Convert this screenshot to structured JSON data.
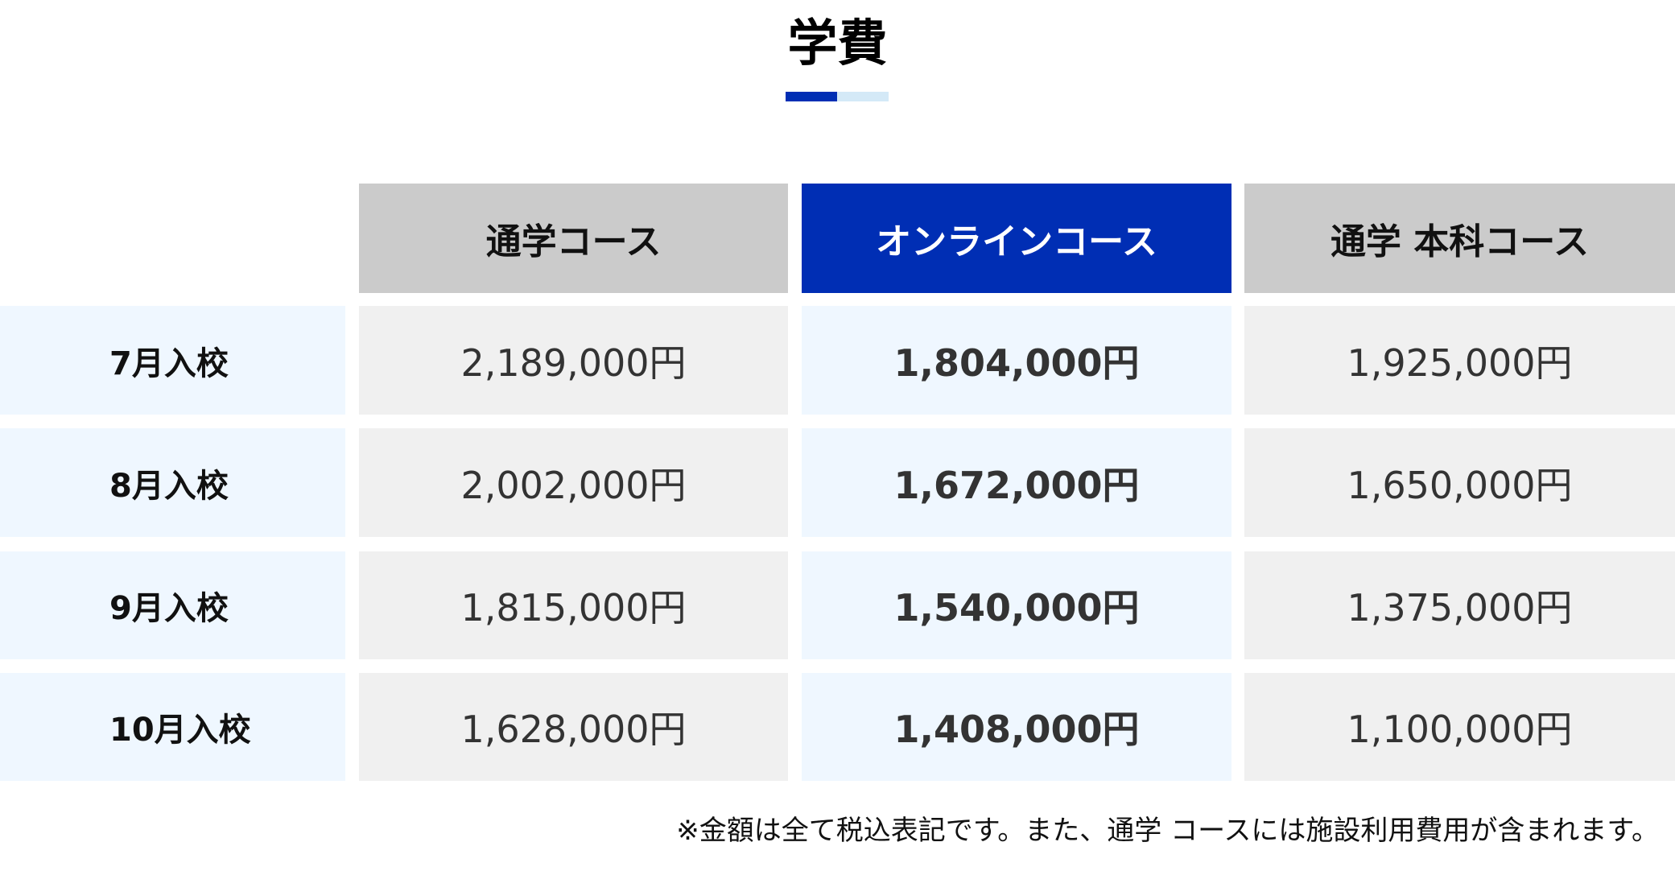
{
  "title": "学費",
  "colors": {
    "accent": "#002eb4",
    "accent_light": "#d4e9f7",
    "header_gray": "#cbcbcb",
    "cell_gray": "#f0f0f0",
    "cell_blue": "#eff7ff"
  },
  "table": {
    "columns": [
      "通学コース",
      "オンラインコース",
      "通学 本科コース"
    ],
    "highlighted_column": 1,
    "rows": [
      {
        "label": "7月入校",
        "values": [
          "2,189,000円",
          "1,804,000円",
          "1,925,000円"
        ]
      },
      {
        "label": "8月入校",
        "values": [
          "2,002,000円",
          "1,672,000円",
          "1,650,000円"
        ]
      },
      {
        "label": "9月入校",
        "values": [
          "1,815,000円",
          "1,540,000円",
          "1,375,000円"
        ]
      },
      {
        "label": "10月入校",
        "values": [
          "1,628,000円",
          "1,408,000円",
          "1,100,000円"
        ]
      }
    ]
  },
  "footnote": "※金額は全て税込表記です。また、通学 コースには施設利用費用が含まれます。"
}
